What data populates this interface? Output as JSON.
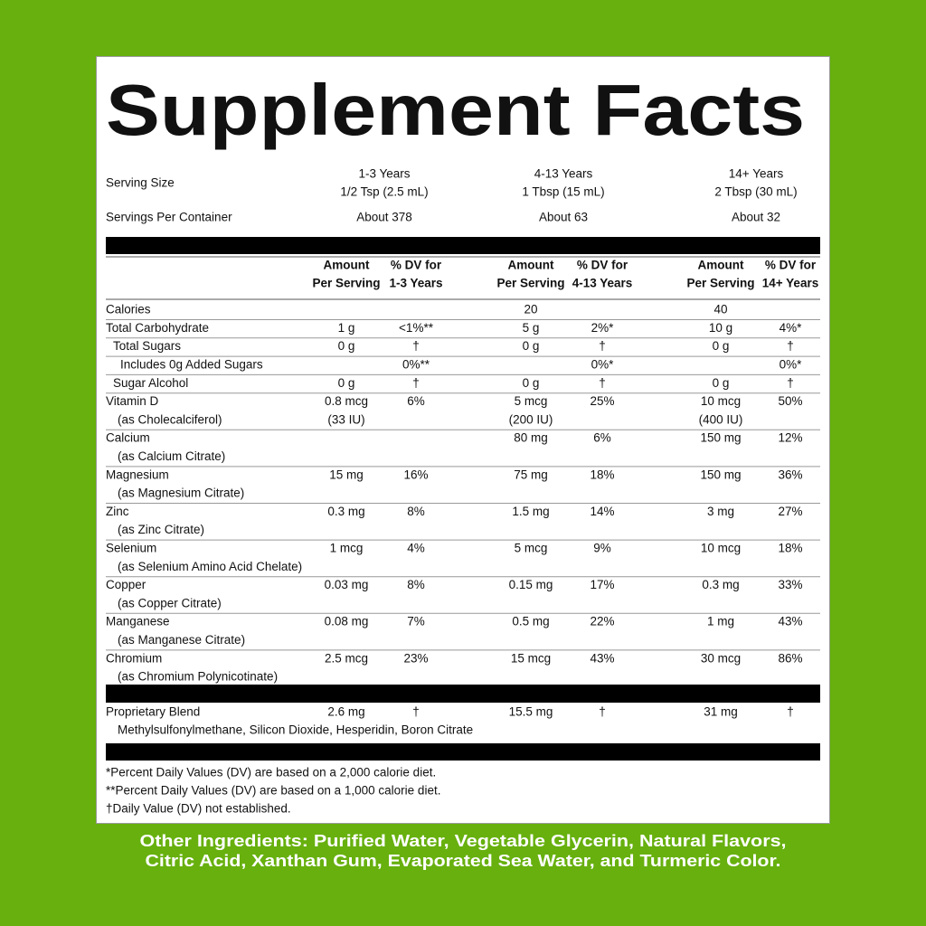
{
  "title": "Supplement Facts",
  "serving": {
    "label": "Serving Size",
    "groups": [
      {
        "age": "1-3 Years",
        "size": "1/2 Tsp (2.5 mL)"
      },
      {
        "age": "4-13 Years",
        "size": "1 Tbsp (15 mL)"
      },
      {
        "age": "14+ Years",
        "size": "2 Tbsp (30 mL)"
      }
    ]
  },
  "servings_per_container": {
    "label": "Servings Per Container",
    "values": [
      "About 378",
      "About 63",
      "About 32"
    ]
  },
  "columns": [
    {
      "amount": [
        "Amount",
        "Per Serving"
      ],
      "dv": [
        "% DV for",
        "1-3 Years"
      ]
    },
    {
      "amount": [
        "Amount",
        "Per Serving"
      ],
      "dv": [
        "% DV for",
        "4-13 Years"
      ]
    },
    {
      "amount": [
        "Amount",
        "Per Serving"
      ],
      "dv": [
        "% DV for",
        "14+ Years"
      ]
    }
  ],
  "rows": [
    {
      "name": "Calories",
      "cells": [
        null,
        null,
        "20",
        null,
        "40",
        null
      ]
    },
    {
      "name": "Total Carbohydrate",
      "cells": [
        "1 g",
        "<1%**",
        "5 g",
        "2%*",
        "10 g",
        "4%*"
      ]
    },
    {
      "name": "Total Sugars",
      "cells": [
        "0 g",
        "†",
        "0 g",
        "†",
        "0 g",
        "†"
      ]
    },
    {
      "name": "Includes 0g Added Sugars",
      "cells": [
        null,
        "0%**",
        null,
        "0%*",
        null,
        "0%*"
      ]
    },
    {
      "name": "Sugar Alcohol",
      "cells": [
        "0 g",
        "†",
        "0 g",
        "†",
        "0 g",
        "†"
      ]
    },
    {
      "name": "Vitamin D",
      "source": "(as Cholecalciferol)",
      "cells": [
        "0.8 mcg",
        "6%",
        "5 mcg",
        "25%",
        "10 mcg",
        "50%"
      ],
      "cells2": [
        "(33 IU)",
        null,
        "(200 IU)",
        null,
        "(400 IU)",
        null
      ]
    },
    {
      "name": "Calcium",
      "source": "(as Calcium Citrate)",
      "cells": [
        null,
        null,
        "80 mg",
        "6%",
        "150 mg",
        "12%"
      ]
    },
    {
      "name": "Magnesium",
      "source": "(as Magnesium Citrate)",
      "cells": [
        "15 mg",
        "16%",
        "75 mg",
        "18%",
        "150 mg",
        "36%"
      ]
    },
    {
      "name": "Zinc",
      "source": "(as Zinc Citrate)",
      "cells": [
        "0.3 mg",
        "8%",
        "1.5 mg",
        "14%",
        "3 mg",
        "27%"
      ]
    },
    {
      "name": "Selenium",
      "source": "(as Selenium Amino Acid Chelate)",
      "cells": [
        "1 mcg",
        "4%",
        "5 mcg",
        "9%",
        "10 mcg",
        "18%"
      ]
    },
    {
      "name": "Copper",
      "source": "(as Copper Citrate)",
      "cells": [
        "0.03 mg",
        "8%",
        "0.15 mg",
        "17%",
        "0.3 mg",
        "33%"
      ]
    },
    {
      "name": "Manganese",
      "source": "(as Manganese Citrate)",
      "cells": [
        "0.08 mg",
        "7%",
        "0.5 mg",
        "22%",
        "1 mg",
        "43%"
      ]
    },
    {
      "name": "Chromium",
      "source": "(as Chromium Polynicotinate)",
      "cells": [
        "2.5 mcg",
        "23%",
        "15 mcg",
        "43%",
        "30 mcg",
        "86%"
      ]
    }
  ],
  "blend": {
    "name": "Proprietary Blend",
    "cells": [
      "2.6 mg",
      "†",
      "15.5 mg",
      "†",
      "31 mg",
      "†"
    ],
    "ingredients": "Methylsulfonylmethane, Silicon Dioxide, Hesperidin, Boron Citrate"
  },
  "footnotes": [
    "*Percent Daily Values (DV) are based on a 2,000 calorie diet.",
    "**Percent Daily Values (DV) are based on a 1,000 calorie diet.",
    "†Daily Value (DV) not established."
  ],
  "other_ingredients": [
    "Other Ingredients: Purified Water, Vegetable Glycerin, Natural Flavors,",
    "Citric Acid, Xanthan Gum, Evaporated Sea Water, and Turmeric Color."
  ]
}
